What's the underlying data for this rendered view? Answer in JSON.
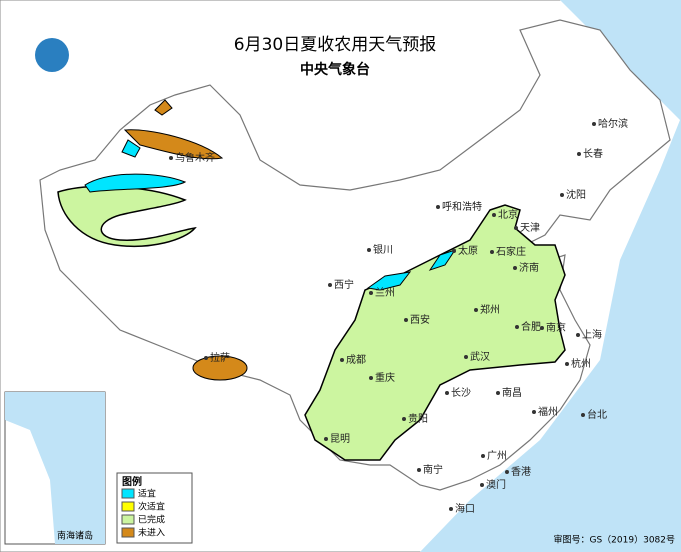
{
  "header": {
    "title": "6月30日夏收农用天气预报",
    "subtitle": "中央气象台"
  },
  "legend": {
    "title": "图例",
    "items": [
      "适宜",
      "次适宜",
      "已完成",
      "未进入"
    ]
  },
  "cities": [
    "乌鲁木齐",
    "呼和浩特",
    "北京",
    "天津",
    "石家庄",
    "太原",
    "银川",
    "济南",
    "西宁",
    "兰州",
    "郑州",
    "西安",
    "合肥",
    "南京",
    "上海",
    "成都",
    "武汉",
    "杭州",
    "重庆",
    "长沙",
    "南昌",
    "福州",
    "台北",
    "贵阳",
    "昆明",
    "南宁",
    "广州",
    "香港",
    "澳门",
    "海口",
    "哈尔滨",
    "长春",
    "沈阳",
    "拉萨"
  ],
  "inset": {
    "label": "南海诸岛"
  },
  "footer": "审图号：GS（2019）3082号"
}
